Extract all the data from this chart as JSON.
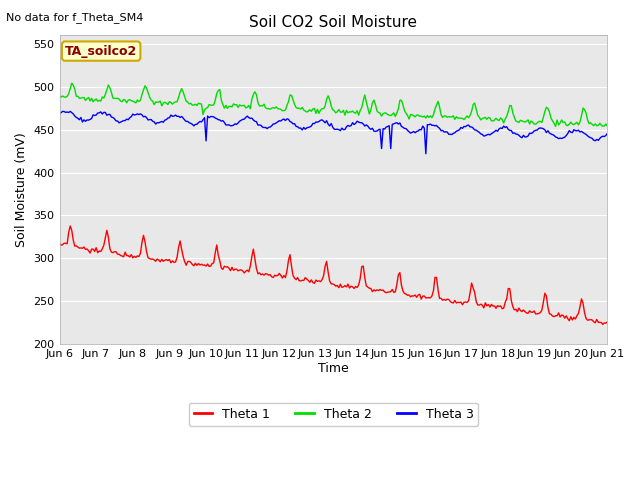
{
  "title": "Soil CO2 Soil Moisture",
  "ylabel": "Soil Moisture (mV)",
  "xlabel": "Time",
  "no_data_text": "No data for f_Theta_SM4",
  "annotation_text": "TA_soilco2",
  "ylim": [
    200,
    560
  ],
  "yticks": [
    200,
    250,
    300,
    350,
    400,
    450,
    500,
    550
  ],
  "x_labels": [
    "Jun 6",
    "Jun 7",
    "Jun 8",
    "Jun 9",
    "Jun 10",
    "Jun 11",
    "Jun 12",
    "Jun 13",
    "Jun 14",
    "Jun 15",
    "Jun 16",
    "Jun 17",
    "Jun 18",
    "Jun 19",
    "Jun 20",
    "Jun 21"
  ],
  "colors": {
    "theta1": "#ff0000",
    "theta2": "#00dd00",
    "theta3": "#0000ff",
    "annotation_bg": "#ffffcc",
    "annotation_border": "#ccaa00"
  },
  "legend_labels": [
    "Theta 1",
    "Theta 2",
    "Theta 3"
  ],
  "background_color": "#e8e8e8"
}
